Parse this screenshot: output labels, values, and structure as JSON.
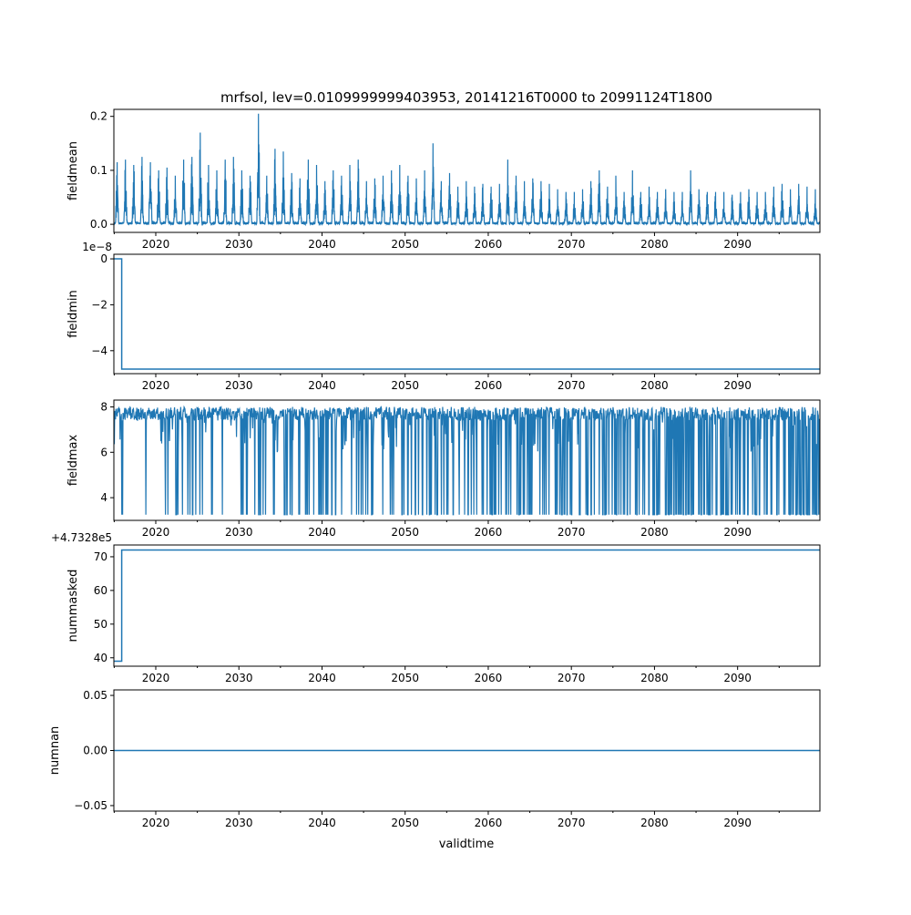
{
  "chart_data": {
    "type": "line",
    "title": "mrfsol, lev=0.0109999999403953, 20141216T0000 to 20991124T1800",
    "xlabel": "validtime",
    "xlim": [
      2014.96,
      2099.9
    ],
    "x_ticks": [
      2020,
      2030,
      2040,
      2050,
      2060,
      2070,
      2080,
      2090
    ],
    "color": "#1f77b4",
    "panels": [
      {
        "ylabel": "fieldmean",
        "ylim": [
          -0.015,
          0.213
        ],
        "y_ticks": [
          0.0,
          0.1,
          0.2
        ],
        "y_tick_labels": [
          "0.0",
          "0.1",
          "0.2"
        ],
        "offset_text": "",
        "annual_peaks_start_year": 2015,
        "annual_peaks": [
          0.115,
          0.12,
          0.11,
          0.125,
          0.115,
          0.1,
          0.105,
          0.09,
          0.12,
          0.125,
          0.17,
          0.11,
          0.1,
          0.12,
          0.125,
          0.1,
          0.09,
          0.205,
          0.09,
          0.14,
          0.135,
          0.095,
          0.085,
          0.12,
          0.11,
          0.08,
          0.1,
          0.09,
          0.11,
          0.12,
          0.08,
          0.085,
          0.09,
          0.1,
          0.11,
          0.09,
          0.085,
          0.1,
          0.15,
          0.08,
          0.095,
          0.07,
          0.08,
          0.07,
          0.075,
          0.07,
          0.075,
          0.12,
          0.09,
          0.08,
          0.085,
          0.08,
          0.075,
          0.065,
          0.06,
          0.06,
          0.065,
          0.08,
          0.1,
          0.07,
          0.09,
          0.06,
          0.1,
          0.06,
          0.07,
          0.06,
          0.065,
          0.06,
          0.06,
          0.1,
          0.065,
          0.06,
          0.06,
          0.06,
          0.055,
          0.06,
          0.065,
          0.06,
          0.06,
          0.07,
          0.075,
          0.065,
          0.075,
          0.07,
          0.065
        ],
        "baseline": 0.0
      },
      {
        "ylabel": "fieldmin",
        "ylim": [
          -5.0,
          0.2
        ],
        "y_ticks": [
          0,
          -2,
          -4
        ],
        "y_tick_labels": [
          "0",
          "−2",
          "−4"
        ],
        "offset_text": "1e−8",
        "steps": [
          {
            "x": 2014.96,
            "y": 0
          },
          {
            "x": 2015.9,
            "y": -4.8
          },
          {
            "x": 2099.9,
            "y": -4.8
          }
        ]
      },
      {
        "ylabel": "fieldmax",
        "ylim": [
          3.0,
          8.3
        ],
        "y_ticks": [
          4,
          6,
          8
        ],
        "y_tick_labels": [
          "4",
          "6",
          "8"
        ],
        "offset_text": "",
        "high": 8.0,
        "low": 3.25
      },
      {
        "ylabel": "nummasked",
        "ylim": [
          37.5,
          73.5
        ],
        "y_ticks": [
          40,
          50,
          60,
          70
        ],
        "y_tick_labels": [
          "40",
          "50",
          "60",
          "70"
        ],
        "offset_text": "+4.7328e5",
        "steps": [
          {
            "x": 2014.96,
            "y": 39
          },
          {
            "x": 2015.9,
            "y": 72
          },
          {
            "x": 2099.9,
            "y": 72
          }
        ]
      },
      {
        "ylabel": "numnan",
        "ylim": [
          -0.055,
          0.055
        ],
        "y_ticks": [
          0.05,
          0.0,
          -0.05
        ],
        "y_tick_labels": [
          "0.05",
          "0.00",
          "−0.05"
        ],
        "offset_text": "",
        "steps": [
          {
            "x": 2014.96,
            "y": 0
          },
          {
            "x": 2099.9,
            "y": 0
          }
        ]
      }
    ]
  }
}
